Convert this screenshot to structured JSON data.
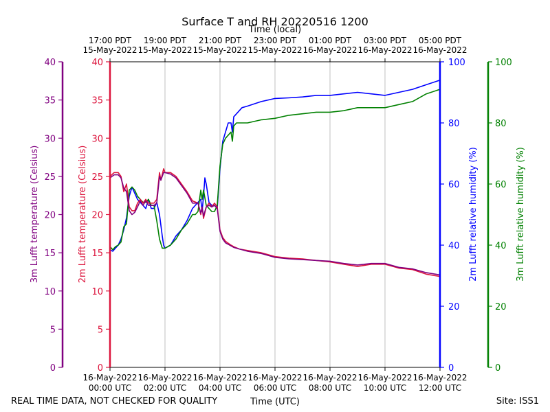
{
  "chart_data": {
    "type": "line",
    "title": "Surface T and RH 20220516 1200",
    "top_axis_title": "Time (local)",
    "xlabel": "Time (UTC)",
    "footer_left": "REAL TIME DATA, NOT CHECKED FOR QUALITY",
    "footer_right": "Site: ISS1",
    "xlim_hours": [
      0,
      12
    ],
    "bottom_ticks": [
      {
        "hour": 0,
        "line1": "16-May-2022",
        "line2": "00:00 UTC"
      },
      {
        "hour": 2,
        "line1": "16-May-2022",
        "line2": "02:00 UTC"
      },
      {
        "hour": 4,
        "line1": "16-May-2022",
        "line2": "04:00 UTC"
      },
      {
        "hour": 6,
        "line1": "16-May-2022",
        "line2": "06:00 UTC"
      },
      {
        "hour": 8,
        "line1": "16-May-2022",
        "line2": "08:00 UTC"
      },
      {
        "hour": 10,
        "line1": "16-May-2022",
        "line2": "10:00 UTC"
      },
      {
        "hour": 12,
        "line1": "16-May-2022",
        "line2": "12:00 UTC"
      }
    ],
    "top_ticks": [
      {
        "hour": 0,
        "line1": "17:00 PDT",
        "line2": "15-May-2022"
      },
      {
        "hour": 2,
        "line1": "19:00 PDT",
        "line2": "15-May-2022"
      },
      {
        "hour": 4,
        "line1": "21:00 PDT",
        "line2": "15-May-2022"
      },
      {
        "hour": 6,
        "line1": "23:00 PDT",
        "line2": "15-May-2022"
      },
      {
        "hour": 8,
        "line1": "01:00 PDT",
        "line2": "16-May-2022"
      },
      {
        "hour": 10,
        "line1": "03:00 PDT",
        "line2": "16-May-2022"
      },
      {
        "hour": 12,
        "line1": "05:00 PDT",
        "line2": "16-May-2022"
      }
    ],
    "axes": [
      {
        "id": "t3",
        "label": "3m Lufft temperature (Celsius)",
        "color": "#800080",
        "range": [
          0,
          40
        ],
        "ticks": [
          0,
          5,
          10,
          15,
          20,
          25,
          30,
          35,
          40
        ],
        "side": "left-outer"
      },
      {
        "id": "t2",
        "label": "2m Lufft temperature (Celsius)",
        "color": "#dc143c",
        "range": [
          0,
          40
        ],
        "ticks": [
          0,
          5,
          10,
          15,
          20,
          25,
          30,
          35,
          40
        ],
        "side": "left-inner"
      },
      {
        "id": "rh2",
        "label": "2m Lufft relative humidity (%)",
        "color": "#0000ff",
        "range": [
          0,
          100
        ],
        "ticks": [
          0,
          20,
          40,
          60,
          80,
          100
        ],
        "side": "right-inner"
      },
      {
        "id": "rh3",
        "label": "3m Lufft relative humidity (%)",
        "color": "#008000",
        "range": [
          0,
          100
        ],
        "ticks": [
          0,
          20,
          40,
          60,
          80,
          100
        ],
        "side": "right-outer"
      }
    ],
    "series": [
      {
        "name": "2m Lufft relative humidity",
        "axis": "rh2",
        "color": "#0000ff",
        "points": [
          [
            0,
            38.5
          ],
          [
            0.1,
            38
          ],
          [
            0.2,
            39
          ],
          [
            0.3,
            40
          ],
          [
            0.4,
            42
          ],
          [
            0.5,
            45
          ],
          [
            0.6,
            49
          ],
          [
            0.7,
            56
          ],
          [
            0.8,
            59
          ],
          [
            0.9,
            57
          ],
          [
            1.0,
            55
          ],
          [
            1.1,
            54
          ],
          [
            1.2,
            53
          ],
          [
            1.3,
            52
          ],
          [
            1.4,
            55
          ],
          [
            1.5,
            52
          ],
          [
            1.6,
            52
          ],
          [
            1.7,
            54
          ],
          [
            1.8,
            50
          ],
          [
            1.9,
            43
          ],
          [
            1.95,
            40
          ],
          [
            2.0,
            39
          ],
          [
            2.2,
            40
          ],
          [
            2.4,
            43
          ],
          [
            2.6,
            45
          ],
          [
            2.8,
            48
          ],
          [
            3.0,
            52
          ],
          [
            3.1,
            53
          ],
          [
            3.2,
            54
          ],
          [
            3.3,
            55
          ],
          [
            3.35,
            51
          ],
          [
            3.4,
            56
          ],
          [
            3.45,
            62
          ],
          [
            3.5,
            60
          ],
          [
            3.6,
            54
          ],
          [
            3.7,
            53
          ],
          [
            3.8,
            53
          ],
          [
            3.9,
            52
          ],
          [
            4.0,
            65
          ],
          [
            4.1,
            74
          ],
          [
            4.2,
            77
          ],
          [
            4.3,
            80
          ],
          [
            4.4,
            80
          ],
          [
            4.45,
            77
          ],
          [
            4.5,
            82
          ],
          [
            4.6,
            83
          ],
          [
            4.8,
            85
          ],
          [
            5.0,
            85.5
          ],
          [
            5.5,
            87
          ],
          [
            6.0,
            88
          ],
          [
            6.5,
            88.2
          ],
          [
            7.0,
            88.5
          ],
          [
            7.5,
            89
          ],
          [
            8.0,
            89
          ],
          [
            8.5,
            89.5
          ],
          [
            9.0,
            90
          ],
          [
            9.5,
            89.5
          ],
          [
            10.0,
            89
          ],
          [
            10.5,
            90
          ],
          [
            11.0,
            91
          ],
          [
            11.5,
            92.5
          ],
          [
            12.0,
            94
          ]
        ]
      },
      {
        "name": "3m Lufft relative humidity",
        "axis": "rh3",
        "color": "#008000",
        "points": [
          [
            0,
            39.5
          ],
          [
            0.1,
            38.5
          ],
          [
            0.2,
            39.5
          ],
          [
            0.3,
            40
          ],
          [
            0.4,
            41
          ],
          [
            0.5,
            46
          ],
          [
            0.6,
            47
          ],
          [
            0.7,
            58
          ],
          [
            0.8,
            59
          ],
          [
            0.9,
            58
          ],
          [
            1.0,
            56
          ],
          [
            1.1,
            55
          ],
          [
            1.2,
            54
          ],
          [
            1.3,
            54
          ],
          [
            1.4,
            55
          ],
          [
            1.5,
            53
          ],
          [
            1.6,
            53
          ],
          [
            1.7,
            48
          ],
          [
            1.8,
            42
          ],
          [
            1.9,
            39
          ],
          [
            2.0,
            39
          ],
          [
            2.2,
            40
          ],
          [
            2.4,
            42
          ],
          [
            2.6,
            45
          ],
          [
            2.8,
            47
          ],
          [
            3.0,
            50
          ],
          [
            3.1,
            50
          ],
          [
            3.2,
            51
          ],
          [
            3.3,
            58
          ],
          [
            3.35,
            55
          ],
          [
            3.4,
            58
          ],
          [
            3.5,
            53
          ],
          [
            3.6,
            52
          ],
          [
            3.7,
            51
          ],
          [
            3.8,
            51
          ],
          [
            3.9,
            53
          ],
          [
            4.0,
            66
          ],
          [
            4.1,
            73
          ],
          [
            4.2,
            75
          ],
          [
            4.3,
            76
          ],
          [
            4.4,
            77
          ],
          [
            4.45,
            74
          ],
          [
            4.5,
            79
          ],
          [
            4.6,
            80
          ],
          [
            5.0,
            80
          ],
          [
            5.5,
            81
          ],
          [
            6.0,
            81.5
          ],
          [
            6.5,
            82.5
          ],
          [
            7.0,
            83
          ],
          [
            7.5,
            83.5
          ],
          [
            8.0,
            83.5
          ],
          [
            8.5,
            84
          ],
          [
            9.0,
            85
          ],
          [
            9.5,
            85
          ],
          [
            10.0,
            85
          ],
          [
            10.5,
            86
          ],
          [
            11.0,
            87
          ],
          [
            11.5,
            89.5
          ],
          [
            12.0,
            91
          ]
        ]
      },
      {
        "name": "2m Lufft temperature",
        "axis": "t2",
        "color": "#dc143c",
        "points": [
          [
            0,
            25
          ],
          [
            0.15,
            25.5
          ],
          [
            0.3,
            25.5
          ],
          [
            0.4,
            25
          ],
          [
            0.5,
            23
          ],
          [
            0.6,
            24
          ],
          [
            0.7,
            21
          ],
          [
            0.8,
            20.5
          ],
          [
            0.9,
            20.5
          ],
          [
            1.0,
            21.5
          ],
          [
            1.1,
            22
          ],
          [
            1.2,
            21.5
          ],
          [
            1.3,
            22
          ],
          [
            1.4,
            21.5
          ],
          [
            1.5,
            21.5
          ],
          [
            1.6,
            21.5
          ],
          [
            1.7,
            22
          ],
          [
            1.8,
            25.5
          ],
          [
            1.85,
            24.5
          ],
          [
            1.95,
            26
          ],
          [
            2.0,
            25.5
          ],
          [
            2.2,
            25.5
          ],
          [
            2.4,
            25
          ],
          [
            2.6,
            24
          ],
          [
            2.8,
            23
          ],
          [
            3.0,
            21.8
          ],
          [
            3.2,
            21.5
          ],
          [
            3.3,
            20
          ],
          [
            3.35,
            21
          ],
          [
            3.4,
            19.5
          ],
          [
            3.5,
            21
          ],
          [
            3.6,
            21.5
          ],
          [
            3.7,
            21
          ],
          [
            3.8,
            21.5
          ],
          [
            3.9,
            21
          ],
          [
            4.0,
            18
          ],
          [
            4.1,
            17
          ],
          [
            4.2,
            16.5
          ],
          [
            4.4,
            16
          ],
          [
            4.5,
            15.8
          ],
          [
            4.7,
            15.5
          ],
          [
            5.0,
            15.3
          ],
          [
            5.5,
            15
          ],
          [
            6.0,
            14.5
          ],
          [
            6.5,
            14.3
          ],
          [
            7.0,
            14.2
          ],
          [
            7.5,
            14
          ],
          [
            8.0,
            13.8
          ],
          [
            8.5,
            13.5
          ],
          [
            9.0,
            13.2
          ],
          [
            9.5,
            13.5
          ],
          [
            10.0,
            13.5
          ],
          [
            10.5,
            13
          ],
          [
            11.0,
            12.8
          ],
          [
            11.5,
            12.2
          ],
          [
            12.0,
            11.9
          ]
        ]
      },
      {
        "name": "3m Lufft temperature",
        "axis": "t3",
        "color": "#800080",
        "points": [
          [
            0,
            24.8
          ],
          [
            0.15,
            25.2
          ],
          [
            0.3,
            25.2
          ],
          [
            0.4,
            24.8
          ],
          [
            0.5,
            23.5
          ],
          [
            0.6,
            23
          ],
          [
            0.7,
            20.5
          ],
          [
            0.8,
            20
          ],
          [
            0.9,
            20.3
          ],
          [
            1.0,
            21
          ],
          [
            1.1,
            21.8
          ],
          [
            1.2,
            21.2
          ],
          [
            1.3,
            21.8
          ],
          [
            1.4,
            21.2
          ],
          [
            1.5,
            21.2
          ],
          [
            1.6,
            21.2
          ],
          [
            1.7,
            21.5
          ],
          [
            1.8,
            25
          ],
          [
            1.85,
            24.5
          ],
          [
            1.95,
            25.5
          ],
          [
            2.0,
            25.5
          ],
          [
            2.2,
            25.3
          ],
          [
            2.4,
            24.8
          ],
          [
            2.6,
            23.8
          ],
          [
            2.8,
            22.8
          ],
          [
            3.0,
            21.5
          ],
          [
            3.2,
            21.5
          ],
          [
            3.3,
            20.2
          ],
          [
            3.35,
            21
          ],
          [
            3.4,
            19.8
          ],
          [
            3.5,
            21
          ],
          [
            3.6,
            21.2
          ],
          [
            3.7,
            21
          ],
          [
            3.8,
            21.2
          ],
          [
            3.9,
            20.8
          ],
          [
            4.0,
            17.8
          ],
          [
            4.1,
            16.8
          ],
          [
            4.2,
            16.3
          ],
          [
            4.4,
            15.9
          ],
          [
            4.5,
            15.7
          ],
          [
            4.7,
            15.5
          ],
          [
            5.0,
            15.2
          ],
          [
            5.5,
            14.9
          ],
          [
            6.0,
            14.4
          ],
          [
            6.5,
            14.2
          ],
          [
            7.0,
            14.1
          ],
          [
            7.5,
            14
          ],
          [
            8.0,
            13.9
          ],
          [
            8.5,
            13.6
          ],
          [
            9.0,
            13.4
          ],
          [
            9.5,
            13.6
          ],
          [
            10.0,
            13.6
          ],
          [
            10.5,
            13.1
          ],
          [
            11.0,
            12.9
          ],
          [
            11.5,
            12.4
          ],
          [
            12.0,
            12.1
          ]
        ]
      }
    ]
  }
}
